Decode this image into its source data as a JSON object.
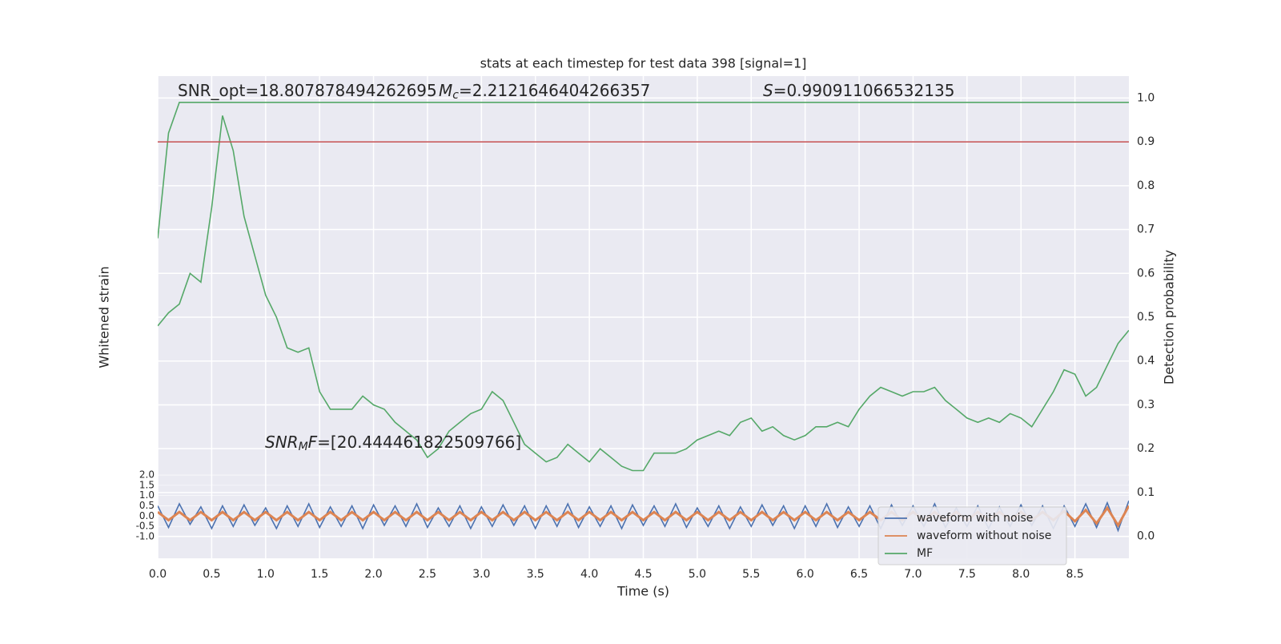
{
  "chart_data": {
    "type": "line",
    "title": "stats at each timestep for test data 398 [signal=1]",
    "xlabel": "Time (s)",
    "ylabel": "Whitened strain",
    "y2label": "Detection probability",
    "xlim": [
      0,
      9
    ],
    "ylim": [
      -2.05,
      21.4
    ],
    "y2lim": [
      -0.05,
      1.05
    ],
    "xticks": [
      {
        "value": 0,
        "label": "0.0"
      },
      0.5,
      {
        "value": 1,
        "label": "1.0"
      },
      1.5,
      {
        "value": 2,
        "label": "2.0"
      },
      2.5,
      {
        "value": 3,
        "label": "3.0"
      },
      3.5,
      {
        "value": 4,
        "label": "4.0"
      },
      4.5,
      {
        "value": 5,
        "label": "5.0"
      },
      5.5,
      {
        "value": 6,
        "label": "6.0"
      },
      6.5,
      {
        "value": 7,
        "label": "7.0"
      },
      7.5,
      {
        "value": 8,
        "label": "8.0"
      },
      8.5
    ],
    "yticks": [
      {
        "value": -1,
        "label": "-1.0"
      },
      -0.5,
      {
        "value": 0,
        "label": "0.0"
      },
      0.5,
      {
        "value": 1,
        "label": "1.0"
      },
      1.5,
      {
        "value": 2,
        "label": "2.0"
      }
    ],
    "y2ticks": [
      {
        "value": 0,
        "label": "0.0"
      },
      0.1,
      0.2,
      0.3,
      0.4,
      0.5,
      0.6,
      0.7,
      0.8,
      0.9,
      {
        "value": 1,
        "label": "1.0"
      }
    ],
    "grid": true,
    "legend": "lower right",
    "annotations": [
      {
        "text": "SNR_opt=18.807878494262695"
      },
      {
        "italic": "M",
        "sub": "c",
        "text": "=2.2121646404266357"
      },
      {
        "italic": "S",
        "text": "=0.990911066532135"
      },
      {
        "italic": "SNR",
        "sub": "M",
        "italic2": "F",
        "text": "=[20.444461822509766]"
      }
    ],
    "x": [
      0,
      0.1,
      0.2,
      0.3,
      0.4,
      0.5,
      0.6,
      0.7,
      0.8,
      0.9,
      1,
      1.1,
      1.2,
      1.3,
      1.4,
      1.5,
      1.6,
      1.7,
      1.8,
      1.9,
      2,
      2.1,
      2.2,
      2.3,
      2.4,
      2.5,
      2.6,
      2.7,
      2.8,
      2.9,
      3,
      3.1,
      3.2,
      3.3,
      3.4,
      3.5,
      3.6,
      3.7,
      3.8,
      3.9,
      4,
      4.1,
      4.2,
      4.3,
      4.4,
      4.5,
      4.6,
      4.7,
      4.8,
      4.9,
      5,
      5.1,
      5.2,
      5.3,
      5.4,
      5.5,
      5.6,
      5.7,
      5.8,
      5.9,
      6,
      6.1,
      6.2,
      6.3,
      6.4,
      6.5,
      6.6,
      6.7,
      6.8,
      6.9,
      7,
      7.1,
      7.2,
      7.3,
      7.4,
      7.5,
      7.6,
      7.7,
      7.8,
      7.9,
      8,
      8.1,
      8.2,
      8.3,
      8.4,
      8.5,
      8.6,
      8.7,
      8.8,
      8.9,
      9
    ],
    "series": [
      {
        "name": "waveform with noise",
        "color": "#4c72b0",
        "axis": "y",
        "values": [
          0.5,
          -0.55,
          0.6,
          -0.4,
          0.45,
          -0.6,
          0.5,
          -0.5,
          0.55,
          -0.45,
          0.4,
          -0.6,
          0.5,
          -0.5,
          0.6,
          -0.55,
          0.45,
          -0.5,
          0.5,
          -0.6,
          0.55,
          -0.45,
          0.5,
          -0.5,
          0.6,
          -0.55,
          0.4,
          -0.5,
          0.5,
          -0.6,
          0.45,
          -0.5,
          0.55,
          -0.45,
          0.5,
          -0.6,
          0.5,
          -0.5,
          0.6,
          -0.55,
          0.45,
          -0.5,
          0.5,
          -0.6,
          0.55,
          -0.45,
          0.5,
          -0.5,
          0.6,
          -0.55,
          0.4,
          -0.5,
          0.5,
          -0.6,
          0.45,
          -0.5,
          0.55,
          -0.45,
          0.5,
          -0.6,
          0.5,
          -0.5,
          0.6,
          -0.55,
          0.45,
          -0.5,
          0.5,
          -0.6,
          0.55,
          -0.45,
          0.5,
          -0.5,
          0.6,
          -0.55,
          0.4,
          -0.5,
          0.5,
          -0.6,
          0.45,
          -0.5,
          0.55,
          -0.45,
          0.5,
          -0.6,
          0.5,
          -0.5,
          0.6,
          -0.55,
          0.65,
          -0.7,
          0.75
        ]
      },
      {
        "name": "waveform without noise",
        "color": "#dd8452",
        "axis": "y",
        "values": [
          0.2,
          -0.2,
          0.2,
          -0.2,
          0.2,
          -0.2,
          0.2,
          -0.2,
          0.2,
          -0.2,
          0.2,
          -0.2,
          0.2,
          -0.2,
          0.2,
          -0.2,
          0.2,
          -0.2,
          0.2,
          -0.2,
          0.2,
          -0.2,
          0.2,
          -0.2,
          0.2,
          -0.2,
          0.2,
          -0.2,
          0.2,
          -0.2,
          0.2,
          -0.2,
          0.2,
          -0.2,
          0.2,
          -0.2,
          0.2,
          -0.2,
          0.2,
          -0.2,
          0.2,
          -0.2,
          0.2,
          -0.2,
          0.2,
          -0.2,
          0.2,
          -0.2,
          0.2,
          -0.2,
          0.2,
          -0.2,
          0.2,
          -0.2,
          0.2,
          -0.2,
          0.2,
          -0.2,
          0.2,
          -0.2,
          0.2,
          -0.2,
          0.2,
          -0.2,
          0.2,
          -0.2,
          0.2,
          -0.2,
          0.2,
          -0.2,
          0.2,
          -0.2,
          0.2,
          -0.2,
          0.2,
          -0.2,
          0.2,
          -0.2,
          0.2,
          -0.2,
          0.2,
          -0.2,
          0.2,
          -0.2,
          0.25,
          -0.25,
          0.3,
          -0.35,
          0.4,
          -0.45,
          0.5
        ]
      },
      {
        "name": "MF",
        "color": "#55a868",
        "axis": "y2",
        "values": [
          0.48,
          0.51,
          0.53,
          0.6,
          0.58,
          0.75,
          0.96,
          0.88,
          0.73,
          0.64,
          0.55,
          0.5,
          0.43,
          0.42,
          0.43,
          0.33,
          0.29,
          0.29,
          0.29,
          0.32,
          0.3,
          0.29,
          0.26,
          0.24,
          0.22,
          0.18,
          0.2,
          0.24,
          0.26,
          0.28,
          0.29,
          0.33,
          0.31,
          0.26,
          0.21,
          0.19,
          0.17,
          0.18,
          0.21,
          0.19,
          0.17,
          0.2,
          0.18,
          0.16,
          0.15,
          0.15,
          0.19,
          0.19,
          0.19,
          0.2,
          0.22,
          0.23,
          0.24,
          0.23,
          0.26,
          0.27,
          0.24,
          0.25,
          0.23,
          0.22,
          0.23,
          0.25,
          0.25,
          0.26,
          0.25,
          0.29,
          0.32,
          0.34,
          0.33,
          0.32,
          0.33,
          0.33,
          0.34,
          0.31,
          0.29,
          0.27,
          0.26,
          0.27,
          0.26,
          0.28,
          0.27,
          0.25,
          0.29,
          0.33,
          0.38,
          0.37,
          0.32,
          0.34,
          0.39,
          0.44,
          0.47
        ]
      },
      {
        "color": "#55a868",
        "axis": "y2",
        "values": [
          0.68,
          0.92,
          0.99,
          0.99,
          0.99,
          0.99,
          0.99,
          0.99,
          0.99,
          0.99,
          0.99,
          0.99,
          0.99,
          0.99,
          0.99,
          0.99,
          0.99,
          0.99,
          0.99,
          0.99,
          0.99,
          0.99,
          0.99,
          0.99,
          0.99,
          0.99,
          0.99,
          0.99,
          0.99,
          0.99,
          0.99,
          0.99,
          0.99,
          0.99,
          0.99,
          0.99,
          0.99,
          0.99,
          0.99,
          0.99,
          0.99,
          0.99,
          0.99,
          0.99,
          0.99,
          0.99,
          0.99,
          0.99,
          0.99,
          0.99,
          0.99,
          0.99,
          0.99,
          0.99,
          0.99,
          0.99,
          0.99,
          0.99,
          0.99,
          0.99,
          0.99,
          0.99,
          0.99,
          0.99,
          0.99,
          0.99,
          0.99,
          0.99,
          0.99,
          0.99,
          0.99,
          0.99,
          0.99,
          0.99,
          0.99,
          0.99,
          0.99,
          0.99,
          0.99,
          0.99,
          0.99,
          0.99,
          0.99,
          0.99,
          0.99,
          0.99,
          0.99,
          0.99,
          0.99,
          0.99,
          0.99
        ]
      }
    ],
    "threshold": {
      "value": 0.9,
      "color": "#c44e52",
      "axis": "y2"
    }
  }
}
